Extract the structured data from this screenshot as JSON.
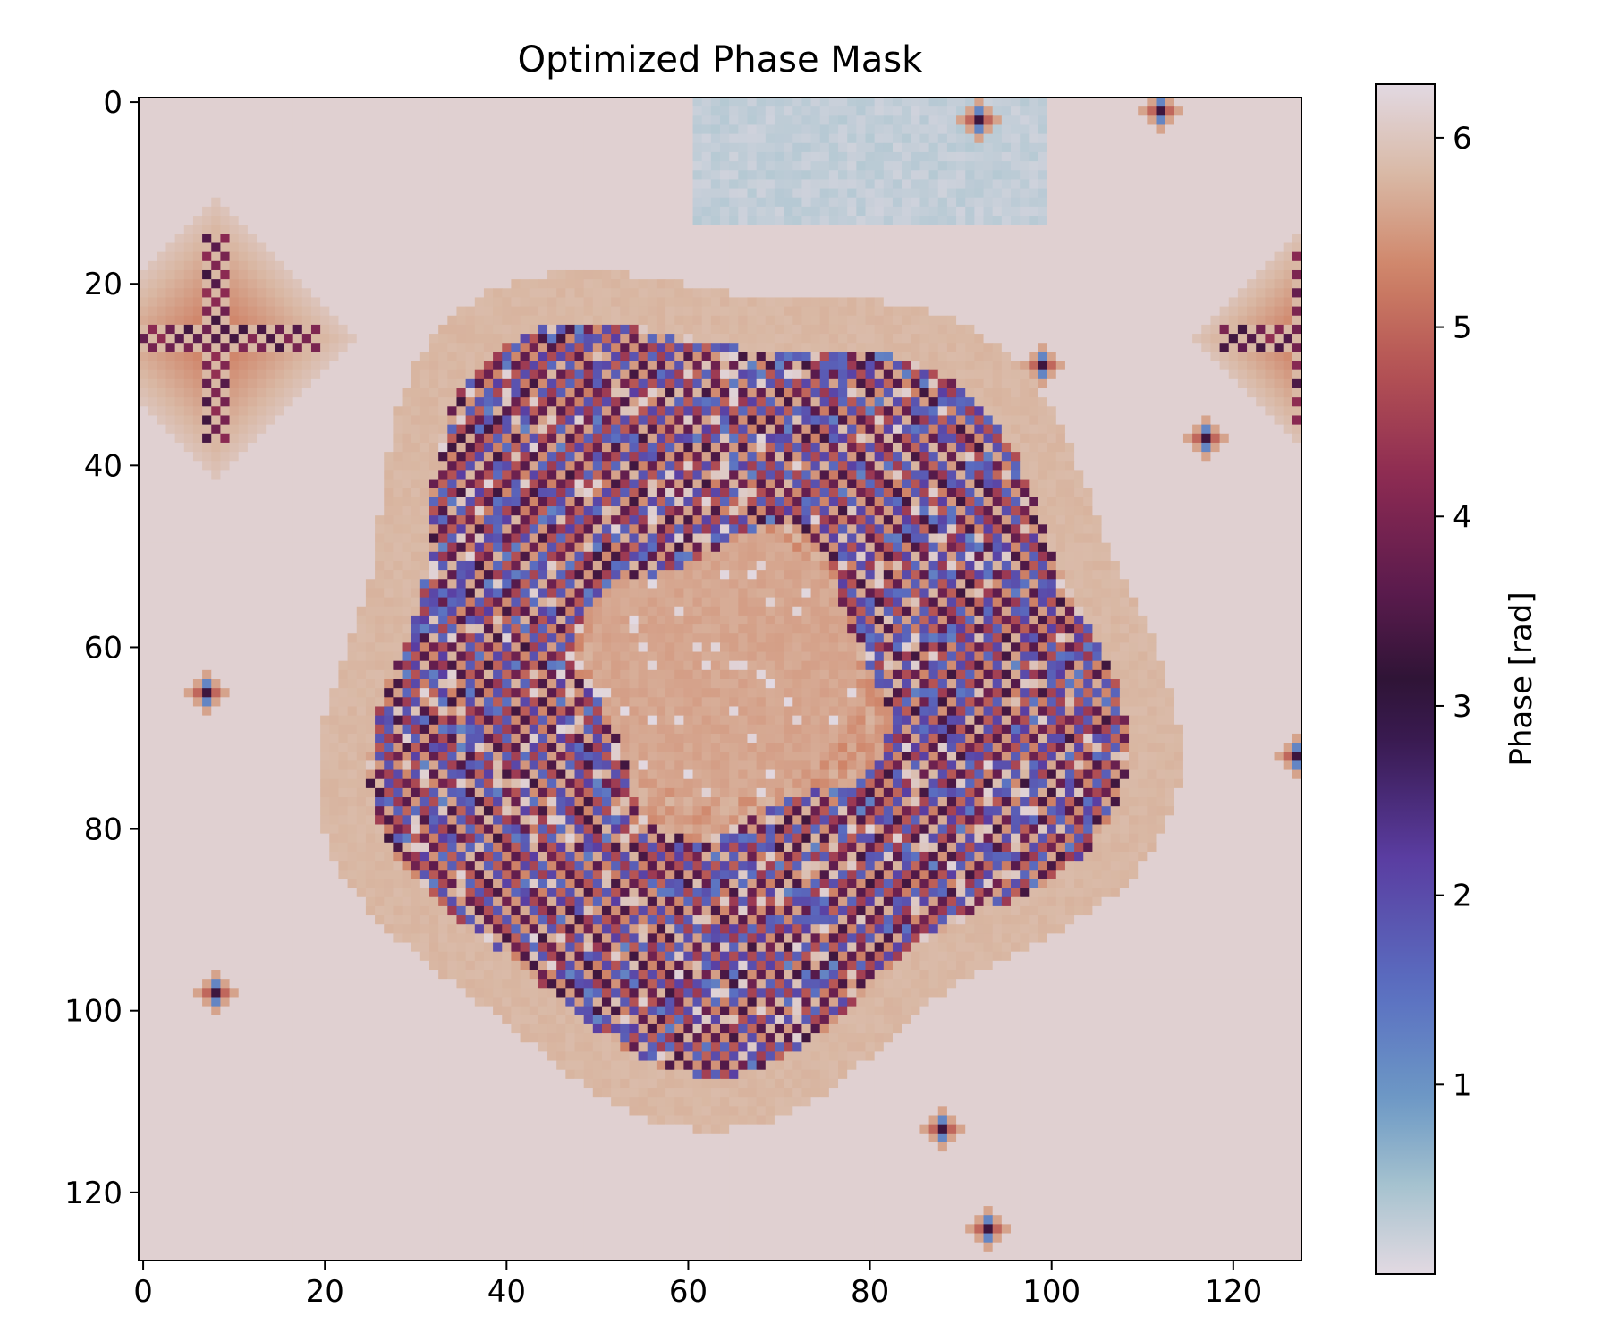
{
  "chart_data": {
    "type": "heatmap",
    "title": "Optimized Phase Mask",
    "xlabel": "",
    "ylabel": "",
    "grid_size": [
      128,
      128
    ],
    "xlim": [
      -0.5,
      127.5
    ],
    "ylim": [
      127.5,
      -0.5
    ],
    "x_ticks": [
      0,
      20,
      40,
      60,
      80,
      100,
      120
    ],
    "y_ticks": [
      0,
      20,
      40,
      60,
      80,
      100,
      120
    ],
    "grid": false,
    "colormap": "twilight",
    "colorbar": {
      "label": "Phase [rad]",
      "range": [
        0,
        6.283
      ],
      "ticks": [
        1,
        2,
        3,
        4,
        5,
        6
      ],
      "placement": "right"
    },
    "colormap_stops": [
      {
        "value": 0.0,
        "color": "#e2d9e2"
      },
      {
        "value": 0.45,
        "color": "#a8c4cf"
      },
      {
        "value": 0.9,
        "color": "#6e9ac5"
      },
      {
        "value": 1.5,
        "color": "#5a6fc1"
      },
      {
        "value": 2.2,
        "color": "#5a3da1"
      },
      {
        "value": 2.8,
        "color": "#3a1a52"
      },
      {
        "value": 3.14,
        "color": "#2f1436"
      },
      {
        "value": 3.6,
        "color": "#5a1b4d"
      },
      {
        "value": 4.2,
        "color": "#8c2a52"
      },
      {
        "value": 4.8,
        "color": "#b65454"
      },
      {
        "value": 5.3,
        "color": "#cf8468"
      },
      {
        "value": 5.8,
        "color": "#d9b8a4"
      },
      {
        "value": 6.283,
        "color": "#e2d9e2"
      }
    ],
    "features": {
      "ring": {
        "center": [
          65,
          64
        ],
        "inner_radius": 16,
        "outer_radius": 40,
        "note": "high-frequency checkerboard phase pattern"
      },
      "center_plateau": {
        "center": [
          64,
          62
        ],
        "radius": 15,
        "phase": 5.55
      },
      "corner_lobes": [
        {
          "center": [
            8,
            26
          ],
          "radius": 12,
          "phase": 5.1
        },
        {
          "center": [
            128,
            26
          ],
          "radius": 10,
          "phase": 5.1
        }
      ],
      "spots": [
        {
          "x": 7,
          "y": 65
        },
        {
          "x": 8,
          "y": 98
        },
        {
          "x": 99,
          "y": 29
        },
        {
          "x": 117,
          "y": 37
        },
        {
          "x": 127,
          "y": 72
        },
        {
          "x": 112,
          "y": 1
        },
        {
          "x": 92,
          "y": 2
        },
        {
          "x": 88,
          "y": 113
        },
        {
          "x": 93,
          "y": 124
        }
      ],
      "background_phase": 6.15
    }
  }
}
